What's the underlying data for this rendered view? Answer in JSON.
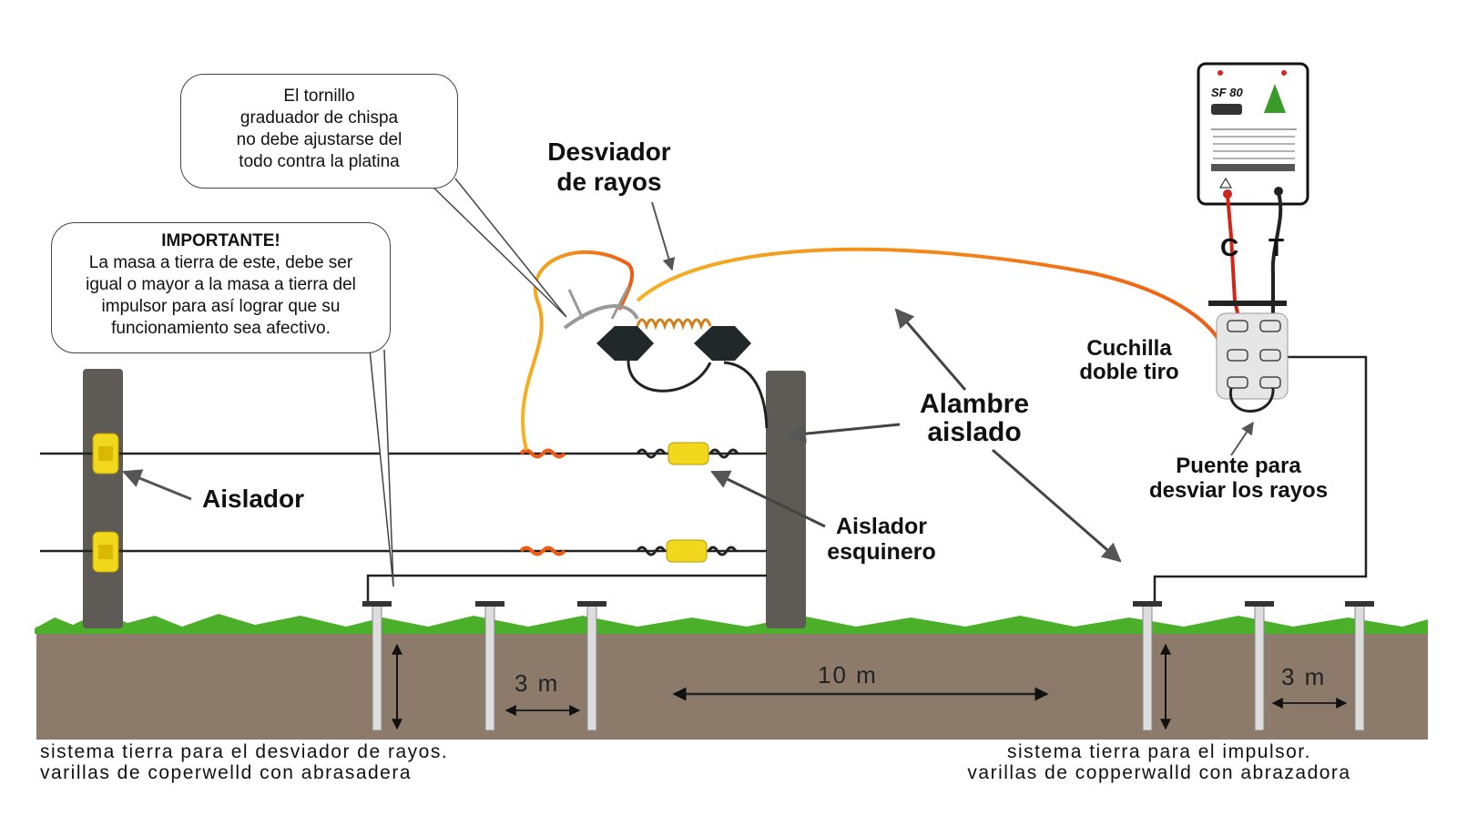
{
  "callouts": {
    "tornillo": [
      "El tornillo",
      "graduador de chispa",
      "no debe ajustarse del",
      "todo contra la platina"
    ],
    "importante_title": "IMPORTANTE!",
    "importante": [
      "La masa a tierra de este, debe ser",
      "igual o mayor a la  masa a tierra del",
      "impulsor para así lograr que su",
      "funcionamiento sea afectivo."
    ]
  },
  "labels": {
    "desviador": [
      "Desviador",
      "de rayos"
    ],
    "aislador": "Aislador",
    "aislador_esquinero": [
      "Aislador",
      "esquinero"
    ],
    "alambre": [
      "Alambre",
      "aislado"
    ],
    "cuchilla": [
      "Cuchilla",
      "doble tiro"
    ],
    "puente": [
      "Puente para",
      "desviar los rayos"
    ],
    "terminal_c": "C",
    "terminal_t": "T"
  },
  "device": {
    "model": "SF 80"
  },
  "dimensions": {
    "left_spacing": "3 m",
    "middle_spacing": "10 m",
    "right_spacing": "3 m"
  },
  "captions": {
    "left": [
      "sistema tierra para el  desviador de rayos.",
      "varillas   de  coperwelld   con  abrasadera"
    ],
    "right": [
      "sistema tierra para el impulsor.",
      "varillas de copperwalld con abrazadora"
    ]
  },
  "colors": {
    "soil": "#8c7b6a",
    "grass": "#4caf2a",
    "post": "#5e5a55",
    "insulator": "#f2d81c",
    "hot_wire": "#f07a12",
    "wire": "#222222"
  }
}
